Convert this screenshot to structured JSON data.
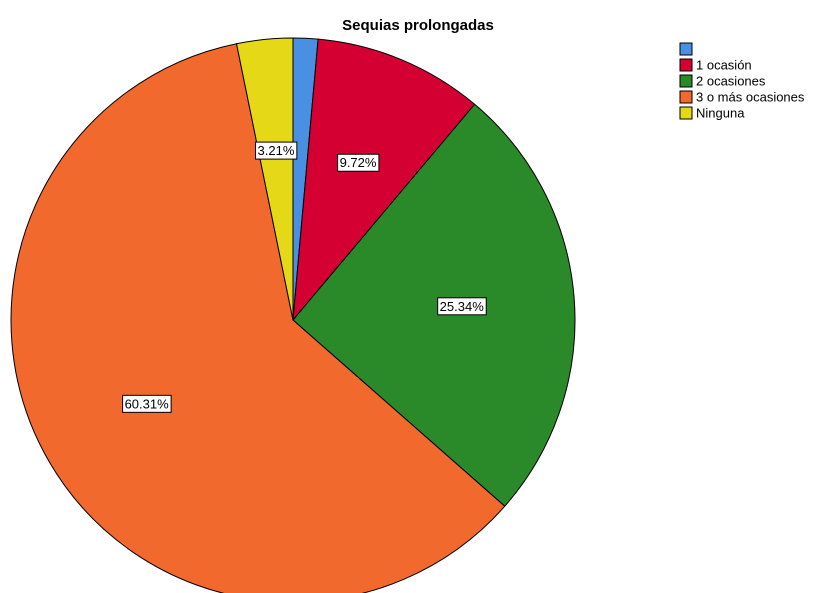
{
  "chart_data": {
    "type": "pie",
    "title": "Sequias prolongadas",
    "categories": [
      null,
      "1 ocasión",
      "2 ocasiones",
      "3 o más ocasiones",
      "Ninguna"
    ],
    "values": [
      1.42,
      9.72,
      25.34,
      60.31,
      3.21
    ],
    "value_labels": [
      null,
      "9.72%",
      "25.34%",
      "60.31%",
      "3.21%"
    ],
    "colors": [
      "#4a90e2",
      "#d50032",
      "#2a8a2a",
      "#f2692e",
      "#e5d817"
    ],
    "legend": "top-right"
  }
}
